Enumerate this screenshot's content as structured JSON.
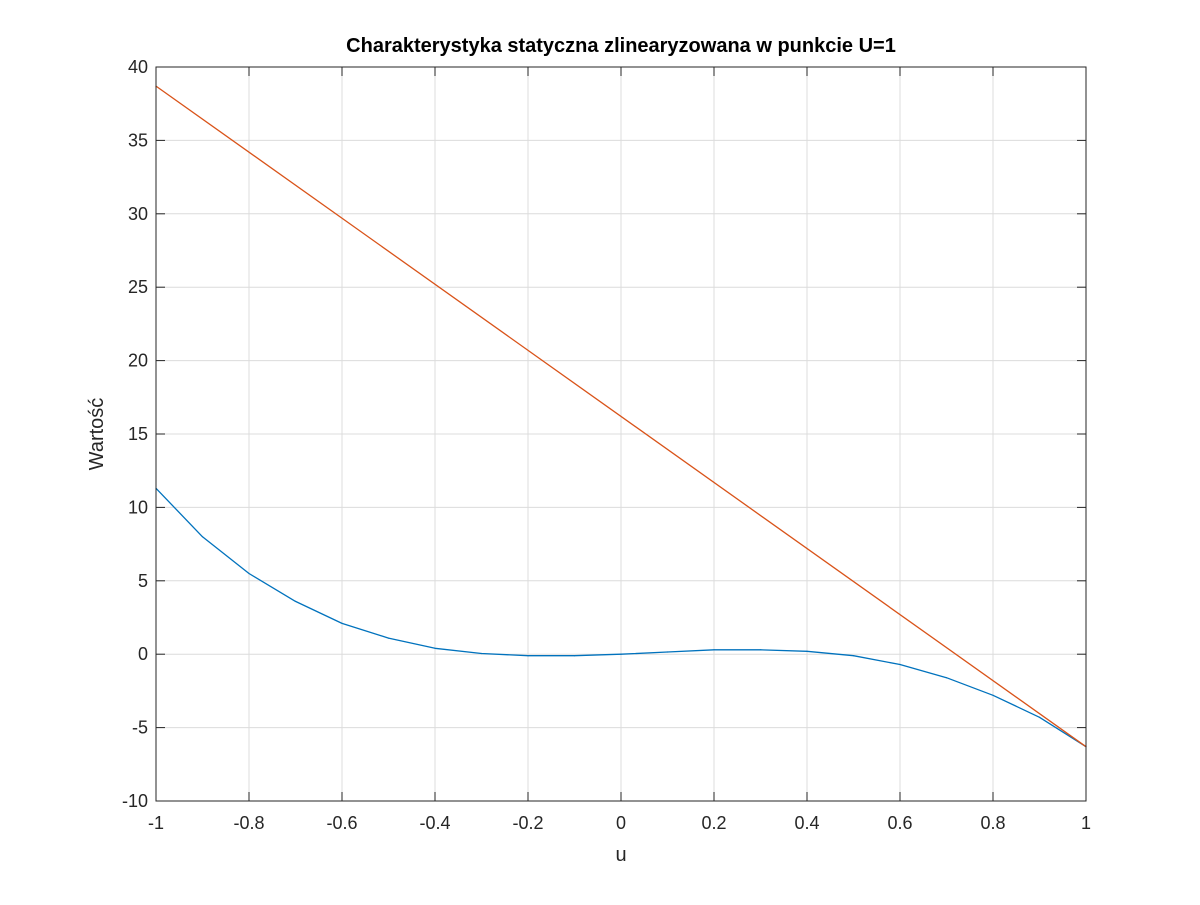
{
  "chart_data": {
    "type": "line",
    "title": "Charakterystyka statyczna zlinearyzowana w punkcie U=1",
    "xlabel": "u",
    "ylabel": "Wartość",
    "xlim": [
      -1,
      1
    ],
    "ylim": [
      -10,
      40
    ],
    "grid": true,
    "xticks": [
      -1,
      -0.8,
      -0.6,
      -0.4,
      -0.2,
      0,
      0.2,
      0.4,
      0.6,
      0.8,
      1
    ],
    "xtick_labels": [
      "-1",
      "-0.8",
      "-0.6",
      "-0.4",
      "-0.2",
      "0",
      "0.2",
      "0.4",
      "0.6",
      "0.8",
      "1"
    ],
    "yticks": [
      -10,
      -5,
      0,
      5,
      10,
      15,
      20,
      25,
      30,
      35,
      40
    ],
    "ytick_labels": [
      "-10",
      "-5",
      "0",
      "5",
      "10",
      "15",
      "20",
      "25",
      "30",
      "35",
      "40"
    ],
    "series": [
      {
        "color": "#0072BD",
        "x": [
          -1,
          -0.9,
          -0.8,
          -0.7,
          -0.6,
          -0.5,
          -0.4,
          -0.3,
          -0.2,
          -0.1,
          0,
          0.1,
          0.2,
          0.3,
          0.4,
          0.5,
          0.6,
          0.7,
          0.8,
          0.9,
          1
        ],
        "y": [
          11.3,
          8.0,
          5.5,
          3.6,
          2.1,
          1.1,
          0.4,
          0.05,
          -0.1,
          -0.1,
          0,
          0.15,
          0.3,
          0.3,
          0.2,
          -0.1,
          -0.7,
          -1.6,
          -2.8,
          -4.3,
          -6.3
        ]
      },
      {
        "color": "#D95319",
        "x": [
          -1,
          1
        ],
        "y": [
          38.7,
          -6.3
        ]
      }
    ]
  }
}
